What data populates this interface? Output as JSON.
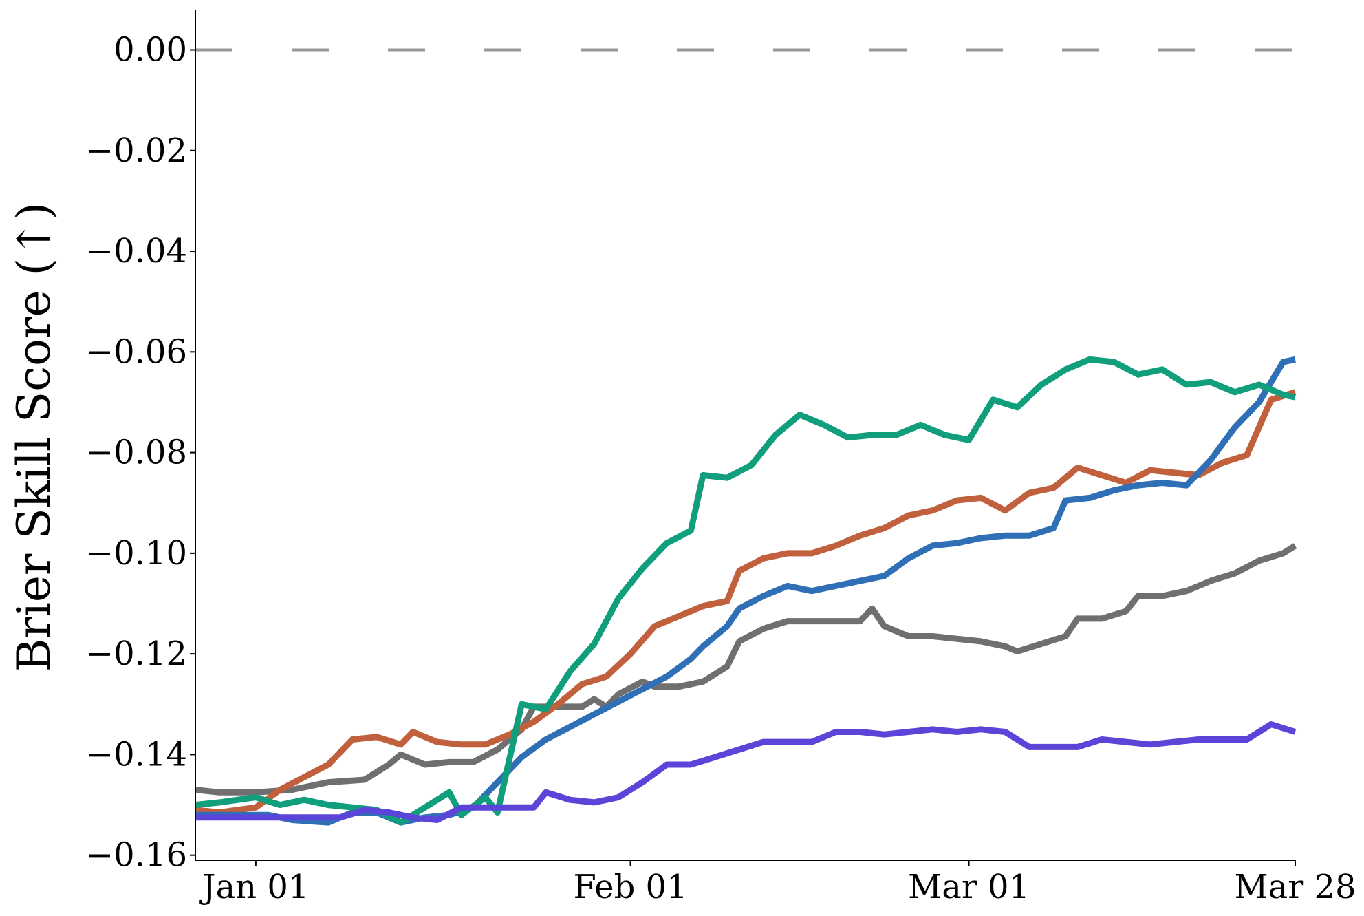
{
  "chart_data": {
    "type": "line",
    "title": "",
    "xlabel": "",
    "ylabel": "Brier Skill Score (↑)",
    "x_start": "2022-12-27",
    "x_end": "2023-03-28",
    "xlim": [
      "2022-12-27",
      "2023-03-28"
    ],
    "ylim": [
      -0.161,
      0.008
    ],
    "x_ticks": [
      {
        "date": "2023-01-01",
        "label": "Jan 01"
      },
      {
        "date": "2023-02-01",
        "label": "Feb 01"
      },
      {
        "date": "2023-03-01",
        "label": "Mar 01"
      },
      {
        "date": "2023-03-28",
        "label": "Mar 28"
      }
    ],
    "y_ticks": [
      {
        "value": 0.0,
        "label": "0.00"
      },
      {
        "value": -0.02,
        "label": "−0.02"
      },
      {
        "value": -0.04,
        "label": "−0.04"
      },
      {
        "value": -0.06,
        "label": "−0.06"
      },
      {
        "value": -0.08,
        "label": "−0.08"
      },
      {
        "value": -0.1,
        "label": "−0.10"
      },
      {
        "value": -0.12,
        "label": "−0.12"
      },
      {
        "value": -0.14,
        "label": "−0.14"
      },
      {
        "value": -0.16,
        "label": "−0.16"
      }
    ],
    "grid": false,
    "legend": "none",
    "reference_line": {
      "y": 0.0,
      "style": "dashed",
      "color": "#999999"
    },
    "series": [
      {
        "color": "#6f6f6f",
        "points": [
          [
            "2022-12-27",
            -0.147
          ],
          [
            "2022-12-29",
            -0.1475
          ],
          [
            "2023-01-01",
            -0.1475
          ],
          [
            "2023-01-04",
            -0.147
          ],
          [
            "2023-01-07",
            -0.1455
          ],
          [
            "2023-01-10",
            -0.145
          ],
          [
            "2023-01-12",
            -0.142
          ],
          [
            "2023-01-13",
            -0.14
          ],
          [
            "2023-01-15",
            -0.142
          ],
          [
            "2023-01-17",
            -0.1415
          ],
          [
            "2023-01-19",
            -0.1415
          ],
          [
            "2023-01-21",
            -0.139
          ],
          [
            "2023-01-23",
            -0.135
          ],
          [
            "2023-01-24",
            -0.1305
          ],
          [
            "2023-01-26",
            -0.1305
          ],
          [
            "2023-01-28",
            -0.1305
          ],
          [
            "2023-01-29",
            -0.129
          ],
          [
            "2023-01-30",
            -0.1305
          ],
          [
            "2023-01-31",
            -0.128
          ],
          [
            "2023-02-02",
            -0.1255
          ],
          [
            "2023-02-03",
            -0.1265
          ],
          [
            "2023-02-05",
            -0.1265
          ],
          [
            "2023-02-07",
            -0.1255
          ],
          [
            "2023-02-09",
            -0.1225
          ],
          [
            "2023-02-10",
            -0.1175
          ],
          [
            "2023-02-12",
            -0.115
          ],
          [
            "2023-02-14",
            -0.1135
          ],
          [
            "2023-02-16",
            -0.1135
          ],
          [
            "2023-02-18",
            -0.1135
          ],
          [
            "2023-02-20",
            -0.1135
          ],
          [
            "2023-02-21",
            -0.111
          ],
          [
            "2023-02-22",
            -0.1145
          ],
          [
            "2023-02-24",
            -0.1165
          ],
          [
            "2023-02-26",
            -0.1165
          ],
          [
            "2023-02-28",
            -0.117
          ],
          [
            "2023-03-02",
            -0.1175
          ],
          [
            "2023-03-04",
            -0.1185
          ],
          [
            "2023-03-05",
            -0.1195
          ],
          [
            "2023-03-07",
            -0.118
          ],
          [
            "2023-03-09",
            -0.1165
          ],
          [
            "2023-03-10",
            -0.113
          ],
          [
            "2023-03-12",
            -0.113
          ],
          [
            "2023-03-14",
            -0.1115
          ],
          [
            "2023-03-15",
            -0.1085
          ],
          [
            "2023-03-17",
            -0.1085
          ],
          [
            "2023-03-19",
            -0.1075
          ],
          [
            "2023-03-21",
            -0.1055
          ],
          [
            "2023-03-23",
            -0.104
          ],
          [
            "2023-03-25",
            -0.1015
          ],
          [
            "2023-03-27",
            -0.1
          ],
          [
            "2023-03-28",
            -0.0985
          ]
        ]
      },
      {
        "color": "#c0603c",
        "points": [
          [
            "2022-12-27",
            -0.151
          ],
          [
            "2022-12-29",
            -0.1515
          ],
          [
            "2023-01-01",
            -0.1505
          ],
          [
            "2023-01-03",
            -0.147
          ],
          [
            "2023-01-05",
            -0.1445
          ],
          [
            "2023-01-07",
            -0.142
          ],
          [
            "2023-01-09",
            -0.137
          ],
          [
            "2023-01-11",
            -0.1365
          ],
          [
            "2023-01-13",
            -0.138
          ],
          [
            "2023-01-14",
            -0.1355
          ],
          [
            "2023-01-16",
            -0.1375
          ],
          [
            "2023-01-18",
            -0.138
          ],
          [
            "2023-01-20",
            -0.138
          ],
          [
            "2023-01-22",
            -0.136
          ],
          [
            "2023-01-24",
            -0.1335
          ],
          [
            "2023-01-26",
            -0.13
          ],
          [
            "2023-01-28",
            -0.126
          ],
          [
            "2023-01-30",
            -0.1245
          ],
          [
            "2023-02-01",
            -0.12
          ],
          [
            "2023-02-03",
            -0.1145
          ],
          [
            "2023-02-05",
            -0.1125
          ],
          [
            "2023-02-07",
            -0.1105
          ],
          [
            "2023-02-09",
            -0.1095
          ],
          [
            "2023-02-10",
            -0.1035
          ],
          [
            "2023-02-12",
            -0.101
          ],
          [
            "2023-02-14",
            -0.1
          ],
          [
            "2023-02-16",
            -0.1
          ],
          [
            "2023-02-18",
            -0.0985
          ],
          [
            "2023-02-20",
            -0.0965
          ],
          [
            "2023-02-22",
            -0.095
          ],
          [
            "2023-02-24",
            -0.0925
          ],
          [
            "2023-02-26",
            -0.0915
          ],
          [
            "2023-02-28",
            -0.0895
          ],
          [
            "2023-03-02",
            -0.089
          ],
          [
            "2023-03-04",
            -0.0915
          ],
          [
            "2023-03-06",
            -0.088
          ],
          [
            "2023-03-08",
            -0.087
          ],
          [
            "2023-03-10",
            -0.083
          ],
          [
            "2023-03-12",
            -0.0845
          ],
          [
            "2023-03-14",
            -0.086
          ],
          [
            "2023-03-16",
            -0.0835
          ],
          [
            "2023-03-18",
            -0.084
          ],
          [
            "2023-03-20",
            -0.0845
          ],
          [
            "2023-03-22",
            -0.082
          ],
          [
            "2023-03-24",
            -0.0805
          ],
          [
            "2023-03-26",
            -0.0695
          ],
          [
            "2023-03-28",
            -0.068
          ]
        ]
      },
      {
        "color": "#2f6fb6",
        "points": [
          [
            "2022-12-27",
            -0.152
          ],
          [
            "2022-12-30",
            -0.152
          ],
          [
            "2023-01-02",
            -0.152
          ],
          [
            "2023-01-04",
            -0.153
          ],
          [
            "2023-01-07",
            -0.1535
          ],
          [
            "2023-01-09",
            -0.1515
          ],
          [
            "2023-01-11",
            -0.1515
          ],
          [
            "2023-01-13",
            -0.1535
          ],
          [
            "2023-01-15",
            -0.1525
          ],
          [
            "2023-01-17",
            -0.152
          ],
          [
            "2023-01-19",
            -0.1505
          ],
          [
            "2023-01-21",
            -0.1455
          ],
          [
            "2023-01-23",
            -0.1405
          ],
          [
            "2023-01-25",
            -0.137
          ],
          [
            "2023-01-27",
            -0.1345
          ],
          [
            "2023-01-29",
            -0.132
          ],
          [
            "2023-01-31",
            -0.1295
          ],
          [
            "2023-02-02",
            -0.127
          ],
          [
            "2023-02-04",
            -0.1245
          ],
          [
            "2023-02-06",
            -0.121
          ],
          [
            "2023-02-07",
            -0.1185
          ],
          [
            "2023-02-09",
            -0.1145
          ],
          [
            "2023-02-10",
            -0.111
          ],
          [
            "2023-02-12",
            -0.1085
          ],
          [
            "2023-02-14",
            -0.1065
          ],
          [
            "2023-02-16",
            -0.1075
          ],
          [
            "2023-02-18",
            -0.1065
          ],
          [
            "2023-02-20",
            -0.1055
          ],
          [
            "2023-02-22",
            -0.1045
          ],
          [
            "2023-02-24",
            -0.101
          ],
          [
            "2023-02-26",
            -0.0985
          ],
          [
            "2023-02-28",
            -0.098
          ],
          [
            "2023-03-02",
            -0.097
          ],
          [
            "2023-03-04",
            -0.0965
          ],
          [
            "2023-03-06",
            -0.0965
          ],
          [
            "2023-03-08",
            -0.095
          ],
          [
            "2023-03-09",
            -0.0895
          ],
          [
            "2023-03-11",
            -0.089
          ],
          [
            "2023-03-13",
            -0.0875
          ],
          [
            "2023-03-15",
            -0.0865
          ],
          [
            "2023-03-17",
            -0.086
          ],
          [
            "2023-03-19",
            -0.0865
          ],
          [
            "2023-03-21",
            -0.0815
          ],
          [
            "2023-03-23",
            -0.075
          ],
          [
            "2023-03-25",
            -0.07
          ],
          [
            "2023-03-27",
            -0.062
          ],
          [
            "2023-03-28",
            -0.0615
          ]
        ]
      },
      {
        "color": "#109e7c",
        "points": [
          [
            "2022-12-27",
            -0.15
          ],
          [
            "2022-12-29",
            -0.1495
          ],
          [
            "2023-01-01",
            -0.1485
          ],
          [
            "2023-01-03",
            -0.15
          ],
          [
            "2023-01-05",
            -0.149
          ],
          [
            "2023-01-07",
            -0.15
          ],
          [
            "2023-01-09",
            -0.1505
          ],
          [
            "2023-01-11",
            -0.151
          ],
          [
            "2023-01-13",
            -0.1535
          ],
          [
            "2023-01-15",
            -0.1505
          ],
          [
            "2023-01-17",
            -0.1475
          ],
          [
            "2023-01-18",
            -0.152
          ],
          [
            "2023-01-20",
            -0.1485
          ],
          [
            "2023-01-21",
            -0.1515
          ],
          [
            "2023-01-23",
            -0.13
          ],
          [
            "2023-01-25",
            -0.131
          ],
          [
            "2023-01-27",
            -0.1235
          ],
          [
            "2023-01-29",
            -0.118
          ],
          [
            "2023-01-31",
            -0.109
          ],
          [
            "2023-02-02",
            -0.103
          ],
          [
            "2023-02-04",
            -0.098
          ],
          [
            "2023-02-06",
            -0.0955
          ],
          [
            "2023-02-07",
            -0.0845
          ],
          [
            "2023-02-09",
            -0.085
          ],
          [
            "2023-02-11",
            -0.0825
          ],
          [
            "2023-02-13",
            -0.0765
          ],
          [
            "2023-02-15",
            -0.0725
          ],
          [
            "2023-02-17",
            -0.0745
          ],
          [
            "2023-02-19",
            -0.077
          ],
          [
            "2023-02-21",
            -0.0765
          ],
          [
            "2023-02-23",
            -0.0765
          ],
          [
            "2023-02-25",
            -0.0745
          ],
          [
            "2023-02-27",
            -0.0765
          ],
          [
            "2023-03-01",
            -0.0775
          ],
          [
            "2023-03-03",
            -0.0695
          ],
          [
            "2023-03-05",
            -0.071
          ],
          [
            "2023-03-07",
            -0.0665
          ],
          [
            "2023-03-09",
            -0.0635
          ],
          [
            "2023-03-11",
            -0.0615
          ],
          [
            "2023-03-13",
            -0.062
          ],
          [
            "2023-03-15",
            -0.0645
          ],
          [
            "2023-03-17",
            -0.0635
          ],
          [
            "2023-03-19",
            -0.0665
          ],
          [
            "2023-03-21",
            -0.066
          ],
          [
            "2023-03-23",
            -0.068
          ],
          [
            "2023-03-25",
            -0.0665
          ],
          [
            "2023-03-27",
            -0.0685
          ],
          [
            "2023-03-28",
            -0.069
          ]
        ]
      },
      {
        "color": "#5b45d9",
        "points": [
          [
            "2022-12-27",
            -0.1525
          ],
          [
            "2022-12-31",
            -0.1525
          ],
          [
            "2023-01-04",
            -0.1525
          ],
          [
            "2023-01-08",
            -0.1525
          ],
          [
            "2023-01-10",
            -0.151
          ],
          [
            "2023-01-12",
            -0.1515
          ],
          [
            "2023-01-14",
            -0.1525
          ],
          [
            "2023-01-16",
            -0.153
          ],
          [
            "2023-01-18",
            -0.1505
          ],
          [
            "2023-01-20",
            -0.1505
          ],
          [
            "2023-01-22",
            -0.1505
          ],
          [
            "2023-01-24",
            -0.1505
          ],
          [
            "2023-01-25",
            -0.1475
          ],
          [
            "2023-01-27",
            -0.149
          ],
          [
            "2023-01-29",
            -0.1495
          ],
          [
            "2023-01-31",
            -0.1485
          ],
          [
            "2023-02-02",
            -0.1455
          ],
          [
            "2023-02-04",
            -0.142
          ],
          [
            "2023-02-06",
            -0.142
          ],
          [
            "2023-02-08",
            -0.1405
          ],
          [
            "2023-02-10",
            -0.139
          ],
          [
            "2023-02-12",
            -0.1375
          ],
          [
            "2023-02-14",
            -0.1375
          ],
          [
            "2023-02-16",
            -0.1375
          ],
          [
            "2023-02-18",
            -0.1355
          ],
          [
            "2023-02-20",
            -0.1355
          ],
          [
            "2023-02-22",
            -0.136
          ],
          [
            "2023-02-24",
            -0.1355
          ],
          [
            "2023-02-26",
            -0.135
          ],
          [
            "2023-02-28",
            -0.1355
          ],
          [
            "2023-03-02",
            -0.135
          ],
          [
            "2023-03-04",
            -0.1355
          ],
          [
            "2023-03-06",
            -0.1385
          ],
          [
            "2023-03-08",
            -0.1385
          ],
          [
            "2023-03-10",
            -0.1385
          ],
          [
            "2023-03-12",
            -0.137
          ],
          [
            "2023-03-14",
            -0.1375
          ],
          [
            "2023-03-16",
            -0.138
          ],
          [
            "2023-03-18",
            -0.1375
          ],
          [
            "2023-03-20",
            -0.137
          ],
          [
            "2023-03-22",
            -0.137
          ],
          [
            "2023-03-24",
            -0.137
          ],
          [
            "2023-03-26",
            -0.134
          ],
          [
            "2023-03-28",
            -0.1355
          ]
        ]
      }
    ]
  }
}
